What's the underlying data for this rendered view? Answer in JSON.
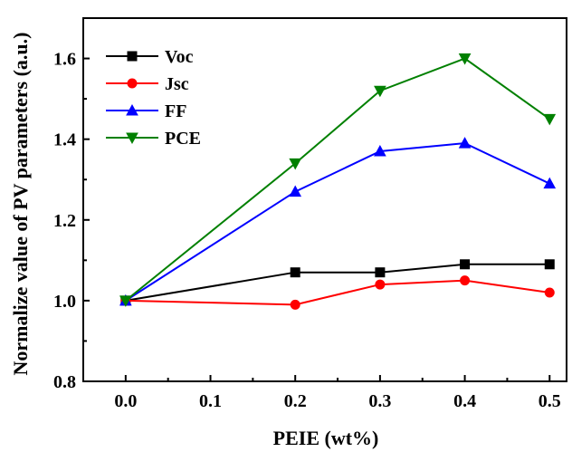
{
  "chart_data": {
    "type": "line",
    "xlabel": "PEIE (wt%)",
    "ylabel": "Normalize value of PV parameters (a.u.)",
    "xlim": [
      -0.05,
      0.52
    ],
    "ylim": [
      0.8,
      1.7
    ],
    "x_ticks": [
      0.0,
      0.1,
      0.2,
      0.3,
      0.4,
      0.5
    ],
    "x_tick_labels": [
      "0.0",
      "0.1",
      "0.2",
      "0.3",
      "0.4",
      "0.5"
    ],
    "y_ticks": [
      0.8,
      1.0,
      1.2,
      1.4,
      1.6
    ],
    "y_tick_labels": [
      "0.8",
      "1.0",
      "1.2",
      "1.4",
      "1.6"
    ],
    "legend_position": "top-left",
    "grid": false,
    "x": [
      0.0,
      0.2,
      0.3,
      0.4,
      0.5
    ],
    "series": [
      {
        "name": "Voc",
        "color": "#000000",
        "marker": "square",
        "values": [
          1.0,
          1.07,
          1.07,
          1.09,
          1.09
        ]
      },
      {
        "name": "Jsc",
        "color": "#ff0000",
        "marker": "circle",
        "values": [
          1.0,
          0.99,
          1.04,
          1.05,
          1.02
        ]
      },
      {
        "name": "FF",
        "color": "#0000ff",
        "marker": "triangle-up",
        "values": [
          1.0,
          1.27,
          1.37,
          1.39,
          1.29
        ]
      },
      {
        "name": "PCE",
        "color": "#008000",
        "marker": "triangle-down",
        "values": [
          1.0,
          1.34,
          1.52,
          1.6,
          1.45
        ]
      }
    ]
  }
}
